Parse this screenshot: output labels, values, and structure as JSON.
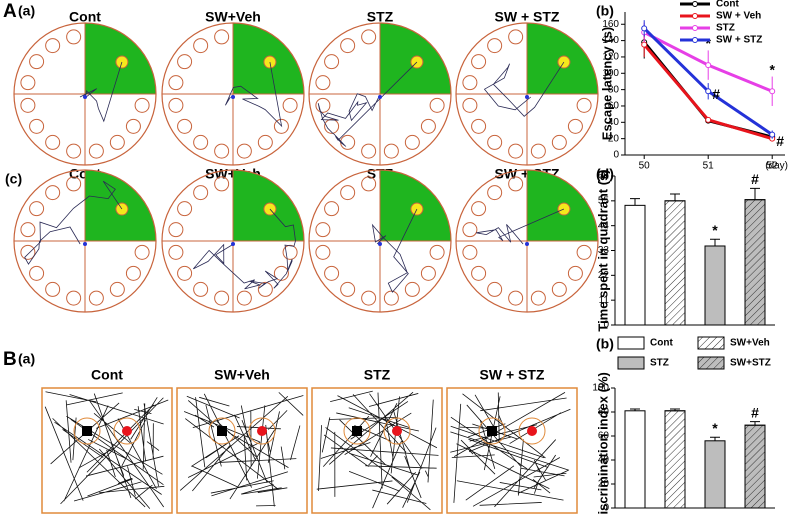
{
  "panel_labels": {
    "A": "A",
    "A_a": "(a)",
    "A_b": "(b)",
    "A_c": "(c)",
    "A_d": "(d)",
    "B": "B",
    "B_a": "(a)",
    "B_b": "(b)"
  },
  "maze_titles_a": [
    "Cont",
    "SW+Veh",
    "STZ",
    "SW + STZ"
  ],
  "maze_titles_c": [
    "Cont",
    "SW+Veh",
    "STZ",
    "SW + STZ"
  ],
  "box_titles": [
    "Cont",
    "SW+Veh",
    "STZ",
    "SW + STZ"
  ],
  "chart_data": [
    {
      "type": "line",
      "ylabel": "Escape latency (s)",
      "xlabel": "(day)",
      "x": [
        50,
        51,
        52
      ],
      "xlim": [
        49.7,
        52.2
      ],
      "xticks": [
        50,
        51,
        52
      ],
      "ylim": [
        0,
        175
      ],
      "yticks": [
        0,
        20,
        40,
        60,
        80,
        100,
        120,
        140,
        160
      ],
      "legend": "upper right",
      "series": [
        {
          "name": "Cont",
          "color": "#000000",
          "values": [
            138,
            42,
            22
          ],
          "errors": [
            20,
            3,
            3
          ]
        },
        {
          "name": "SW + Veh",
          "color": "#e8141c",
          "values": [
            135,
            43,
            20
          ],
          "errors": [
            15,
            3,
            3
          ]
        },
        {
          "name": "STZ",
          "color": "#e63fe6",
          "values": [
            150,
            110,
            78
          ],
          "errors": [
            12,
            18,
            18
          ],
          "annotations": [
            null,
            "*",
            "*"
          ]
        },
        {
          "name": "SW + STZ",
          "color": "#2432d8",
          "values": [
            155,
            78,
            25
          ],
          "errors": [
            10,
            10,
            5
          ],
          "annotations": [
            null,
            "#",
            "#"
          ]
        }
      ]
    },
    {
      "type": "bar",
      "ylabel": "Time spent in quadrant (s)",
      "values": [
        53,
        55,
        35,
        55.5
      ],
      "errors": [
        3,
        3,
        3,
        5
      ],
      "annotations": [
        null,
        null,
        "*",
        "#"
      ],
      "colors": [
        "#ffffff",
        "#ffffff",
        "#bdbdbd",
        "#bdbdbd"
      ],
      "hatch": [
        false,
        true,
        false,
        true
      ],
      "ylim": [
        0,
        66
      ],
      "yticks": [
        0,
        11,
        22,
        33,
        44,
        55,
        66
      ]
    },
    {
      "type": "bar",
      "ylabel": "Discrimination index (%)",
      "categories": [
        "Cont",
        "SW+Veh",
        "STZ",
        "SW+STZ"
      ],
      "values": [
        81,
        81,
        56,
        69
      ],
      "errors": [
        1.5,
        1.5,
        3,
        3
      ],
      "annotations": [
        null,
        null,
        "*",
        "#"
      ],
      "colors": [
        "#ffffff",
        "#ffffff",
        "#bdbdbd",
        "#bdbdbd"
      ],
      "hatch": [
        false,
        true,
        false,
        true
      ],
      "ylim": [
        0,
        100
      ],
      "yticks": [
        0,
        20,
        40,
        60,
        80,
        100
      ]
    }
  ]
}
